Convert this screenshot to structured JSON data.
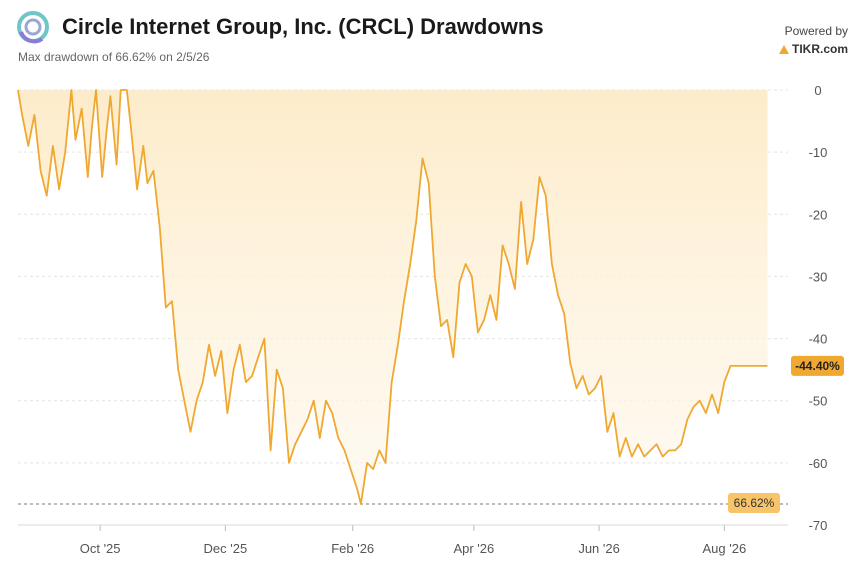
{
  "header": {
    "title": "Circle Internet Group, Inc. (CRCL) Drawdowns",
    "subtitle": "Max drawdown of 66.62% on 2/5/26",
    "powered_label": "Powered by",
    "brand": "TIKR.com",
    "logo_icon": "circle-logo-icon",
    "brand_icon": "tikr-triangle-icon"
  },
  "colors": {
    "line": "#f0a830",
    "fill_top": "#fdebc8",
    "current_badge": "#f0a830",
    "max_badge": "#f7c46a"
  },
  "chart_data": {
    "type": "area",
    "title": "Circle Internet Group, Inc. (CRCL) Drawdowns",
    "ylabel": "",
    "xlabel": "",
    "ylim": [
      -70,
      0
    ],
    "yticks": [
      0,
      -10,
      -20,
      -30,
      -40,
      -50,
      -60,
      -70
    ],
    "xlim": [
      "2025-08-22",
      "2026-09-01"
    ],
    "xticks": [
      {
        "date": "2025-10-01",
        "label": "Oct '25"
      },
      {
        "date": "2025-12-01",
        "label": "Dec '25"
      },
      {
        "date": "2026-02-01",
        "label": "Feb '26"
      },
      {
        "date": "2026-04-01",
        "label": "Apr '26"
      },
      {
        "date": "2026-06-01",
        "label": "Jun '26"
      },
      {
        "date": "2026-08-01",
        "label": "Aug '26"
      }
    ],
    "grid": true,
    "legend": "none",
    "current_value_label": "-44.40%",
    "max_drawdown_label": "66.62%",
    "max_drawdown_value": -66.62,
    "series": [
      {
        "x": [
          "2025-08-22",
          "2025-08-24",
          "2025-08-27",
          "2025-08-30",
          "2025-09-02",
          "2025-09-05",
          "2025-09-08",
          "2025-09-11",
          "2025-09-14",
          "2025-09-17",
          "2025-09-19",
          "2025-09-22",
          "2025-09-25",
          "2025-09-27",
          "2025-09-29",
          "2025-10-02",
          "2025-10-04",
          "2025-10-06",
          "2025-10-09",
          "2025-10-11",
          "2025-10-14",
          "2025-10-16",
          "2025-10-19",
          "2025-10-22",
          "2025-10-24",
          "2025-10-27",
          "2025-10-30",
          "2025-11-02",
          "2025-11-05",
          "2025-11-08",
          "2025-11-11",
          "2025-11-14",
          "2025-11-17",
          "2025-11-20",
          "2025-11-23",
          "2025-11-26",
          "2025-11-29",
          "2025-12-02",
          "2025-12-05",
          "2025-12-08",
          "2025-12-11",
          "2025-12-14",
          "2025-12-17",
          "2025-12-20",
          "2025-12-23",
          "2025-12-26",
          "2025-12-29",
          "2026-01-01",
          "2026-01-04",
          "2026-01-07",
          "2026-01-10",
          "2026-01-13",
          "2026-01-16",
          "2026-01-19",
          "2026-01-22",
          "2026-01-25",
          "2026-01-28",
          "2026-01-31",
          "2026-02-03",
          "2026-02-05",
          "2026-02-08",
          "2026-02-11",
          "2026-02-14",
          "2026-02-17",
          "2026-02-20",
          "2026-02-23",
          "2026-02-26",
          "2026-03-01",
          "2026-03-04",
          "2026-03-07",
          "2026-03-10",
          "2026-03-13",
          "2026-03-16",
          "2026-03-19",
          "2026-03-22",
          "2026-03-25",
          "2026-03-28",
          "2026-03-31",
          "2026-04-03",
          "2026-04-06",
          "2026-04-09",
          "2026-04-12",
          "2026-04-15",
          "2026-04-18",
          "2026-04-21",
          "2026-04-24",
          "2026-04-27",
          "2026-04-30",
          "2026-05-03",
          "2026-05-06",
          "2026-05-09",
          "2026-05-12",
          "2026-05-15",
          "2026-05-18",
          "2026-05-21",
          "2026-05-24",
          "2026-05-27",
          "2026-05-30",
          "2026-06-02",
          "2026-06-05",
          "2026-06-08",
          "2026-06-11",
          "2026-06-14",
          "2026-06-17",
          "2026-06-20",
          "2026-06-23",
          "2026-06-26",
          "2026-06-29",
          "2026-07-02",
          "2026-07-05",
          "2026-07-08",
          "2026-07-11",
          "2026-07-14",
          "2026-07-17",
          "2026-07-20",
          "2026-07-23",
          "2026-07-26",
          "2026-07-29",
          "2026-08-01",
          "2026-08-04",
          "2026-08-07",
          "2026-08-10",
          "2026-08-13",
          "2026-08-16",
          "2026-08-19",
          "2026-08-22"
        ],
        "values": [
          0,
          -4,
          -9,
          -4,
          -13,
          -17,
          -9,
          -16,
          -10,
          0,
          -8,
          -3,
          -14,
          -6,
          0,
          -14,
          -7,
          -1,
          -12,
          0,
          0,
          -6,
          -16,
          -9,
          -15,
          -13,
          -22,
          -35,
          -34,
          -45,
          -50,
          -55,
          -50,
          -47,
          -41,
          -46,
          -42,
          -52,
          -45,
          -41,
          -47,
          -46,
          -43,
          -40,
          -58,
          -45,
          -48,
          -60,
          -57,
          -55,
          -53,
          -50,
          -56,
          -50,
          -52,
          -56,
          -58,
          -61,
          -64,
          -66.62,
          -60,
          -61,
          -58,
          -60,
          -47,
          -41,
          -34,
          -28,
          -21,
          -11,
          -15,
          -30,
          -38,
          -37,
          -43,
          -31,
          -28,
          -30,
          -39,
          -37,
          -33,
          -37,
          -25,
          -28,
          -32,
          -18,
          -28,
          -24,
          -14,
          -17,
          -28,
          -33,
          -36,
          -44,
          -48,
          -46,
          -49,
          -48,
          -46,
          -55,
          -52,
          -59,
          -56,
          -59,
          -57,
          -59,
          -58,
          -57,
          -59,
          -58,
          -58,
          -57,
          -53,
          -51,
          -50,
          -52,
          -49,
          -52,
          -47,
          -44.4,
          -44.4,
          -44.4,
          -44.4,
          -44.4,
          -44.4,
          -44.4
        ]
      }
    ]
  }
}
